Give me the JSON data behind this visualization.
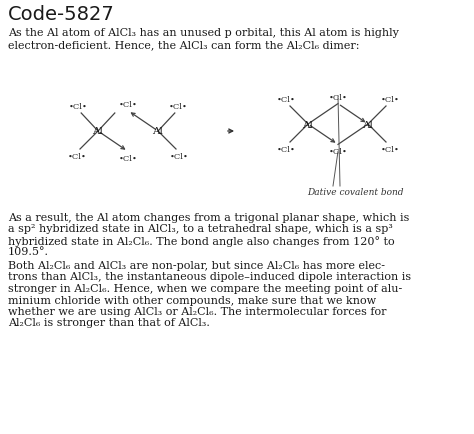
{
  "title": "Code-5827",
  "bg_color": "#ffffff",
  "text_color": "#1a1a1a",
  "line1": "As the Al atom of AlCl₃ has an unused p orbital, this Al atom is highly",
  "line2": "electron-deficient. Hence, the AlCl₃ can form the Al₂Cl₆ dimer:",
  "p2": [
    "As a result, the Al atom changes from a trigonal planar shape, which is",
    "a sp² hybridized state in AlCl₃, to a tetrahedral shape, which is a sp³",
    "hybridized state in Al₂Cl₆. The bond angle also changes from 120° to",
    "109.5°."
  ],
  "p3": [
    "Both Al₂Cl₆ and AlCl₃ are non-polar, but since Al₂Cl₆ has more elec-",
    "trons than AlCl₃, the instantaneous dipole–induced dipole interaction is",
    "stronger in Al₂Cl₆. Hence, when we compare the meeting point of alu-",
    "minium chloride with other compounds, make sure that we know",
    "whether we are using AlCl₃ or Al₂Cl₆. The intermolecular forces for",
    "Al₂Cl₆ is stronger than that of AlCl₃."
  ],
  "dative_label": "Dative covalent bond",
  "cl_font": 6.0,
  "al_font": 7.5,
  "bond_color": "#444444",
  "text_font": 8.0,
  "title_font": 14.0
}
